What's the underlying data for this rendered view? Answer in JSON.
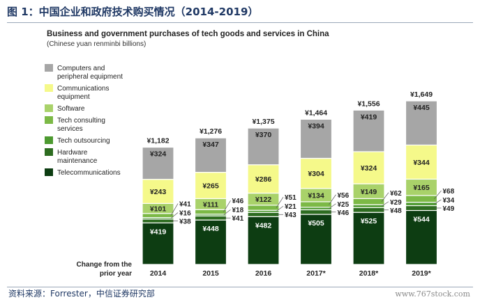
{
  "figure": {
    "title": "图 1：中国企业和政府技术购买情况（2014-2019）",
    "source": "资料来源：Forrester，中信证券研究部",
    "watermark": "www.767stock.com"
  },
  "colors": {
    "Computers and peripheral equipment": "#a6a6a6",
    "Communications equipment": "#f5f98a",
    "Software": "#a9d26a",
    "Tech consulting services": "#7cb946",
    "Tech outsourcing": "#4d9a30",
    "Hardware maintenance": "#2d6c20",
    "Telecommunications": "#0d3d12"
  },
  "chart_data": {
    "type": "bar",
    "stacked": true,
    "title": "Business and government purchases of tech goods and services in China",
    "subtitle": "(Chinese yuan renminbi billions)",
    "xlabel": "Change from the prior year",
    "categories": [
      "2014",
      "2015",
      "2016",
      "2017*",
      "2018*",
      "2019*"
    ],
    "totals": [
      "¥1,182",
      "¥1,276",
      "¥1,375",
      "¥1,464",
      "¥1,556",
      "¥1,649"
    ],
    "total_values": [
      1182,
      1276,
      1375,
      1464,
      1556,
      1649
    ],
    "series": [
      {
        "name": "Telecommunications",
        "values": [
          419,
          448,
          482,
          505,
          525,
          544
        ],
        "labels": [
          "¥419",
          "¥448",
          "¥482",
          "¥505",
          "¥525",
          "¥544"
        ]
      },
      {
        "name": "Hardware maintenance",
        "values": [
          38,
          41,
          43,
          46,
          48,
          49
        ],
        "labels": [
          "¥38",
          "¥41",
          "¥43",
          "¥46",
          "¥48",
          "¥49"
        ]
      },
      {
        "name": "Tech outsourcing",
        "values": [
          16,
          18,
          21,
          25,
          29,
          34
        ],
        "labels": [
          "¥16",
          "¥18",
          "¥21",
          "¥25",
          "¥29",
          "¥34"
        ]
      },
      {
        "name": "Tech consulting services",
        "values": [
          41,
          46,
          51,
          56,
          62,
          68
        ],
        "labels": [
          "¥41",
          "¥46",
          "¥51",
          "¥56",
          "¥62",
          "¥68"
        ]
      },
      {
        "name": "Software",
        "values": [
          101,
          111,
          122,
          134,
          149,
          165
        ],
        "labels": [
          "¥101",
          "¥111",
          "¥122",
          "¥134",
          "¥149",
          "¥165"
        ]
      },
      {
        "name": "Communications equipment",
        "values": [
          243,
          265,
          286,
          304,
          324,
          344
        ],
        "labels": [
          "¥243",
          "¥265",
          "¥286",
          "¥304",
          "¥324",
          "¥344"
        ]
      },
      {
        "name": "Computers and peripheral equipment",
        "values": [
          324,
          347,
          370,
          394,
          419,
          445
        ],
        "labels": [
          "¥324",
          "¥347",
          "¥370",
          "¥394",
          "¥419",
          "¥445"
        ]
      }
    ],
    "legend": {
      "placement": "top-left",
      "entries": [
        {
          "series": "Computers and peripheral equipment",
          "lines": [
            "Computers and",
            "peripheral equipment"
          ]
        },
        {
          "series": "Communications equipment",
          "lines": [
            "Communications",
            "equipment"
          ]
        },
        {
          "series": "Software",
          "lines": [
            "Software"
          ]
        },
        {
          "series": "Tech consulting services",
          "lines": [
            "Tech consulting",
            "services"
          ]
        },
        {
          "series": "Tech outsourcing",
          "lines": [
            "Tech outsourcing"
          ]
        },
        {
          "series": "Hardware maintenance",
          "lines": [
            "Hardware",
            "maintenance"
          ]
        },
        {
          "series": "Telecommunications",
          "lines": [
            "Telecommunications"
          ]
        }
      ]
    },
    "grid": false
  }
}
